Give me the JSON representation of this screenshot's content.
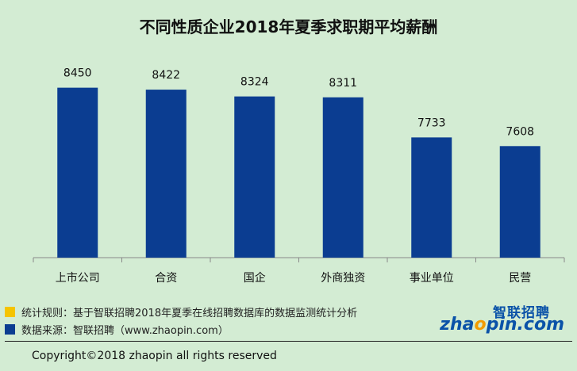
{
  "chart_data": {
    "type": "bar",
    "title": "不同性质企业2018年夏季求职期平均薪酬",
    "categories": [
      "上市公司",
      "合资",
      "国企",
      "外商独资",
      "事业单位",
      "民营"
    ],
    "values": [
      8450,
      8422,
      8324,
      8311,
      7733,
      7608
    ],
    "ylim": [
      6000,
      8800
    ],
    "bar_color": "#0b3d91",
    "grid": false,
    "legend": "none"
  },
  "notes": {
    "rule": "统计规则：基于智联招聘2018年夏季在线招聘数据库的数据监测统计分析",
    "source": "数据来源：智联招聘（www.zhaopin.com）"
  },
  "logo": {
    "cn": "智联招聘",
    "en_pre": "zha",
    "en_o": "o",
    "en_post": "pin.com"
  },
  "copyright": "Copyright©2018 zhaopin all rights reserved",
  "colors": {
    "background": "#d3ecd3",
    "note_yellow": "#f5c400",
    "note_blue": "#0b3d91",
    "logo_blue": "#0a52a8",
    "logo_orange": "#f29b00"
  }
}
